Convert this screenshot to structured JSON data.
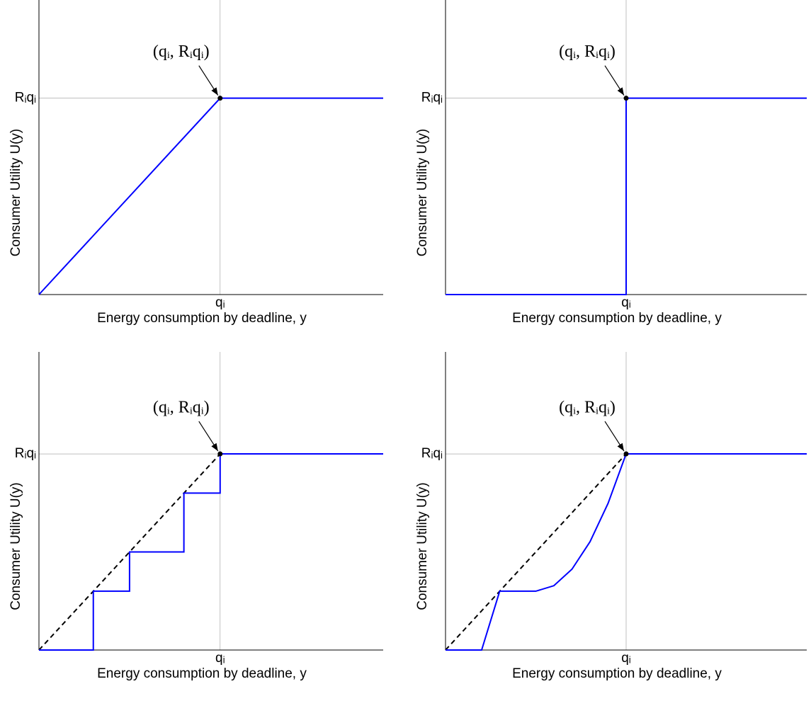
{
  "chart_data": [
    {
      "type": "line",
      "xlabel": "Energy consumption by deadline, y",
      "ylabel": "Consumer Utility U(y)",
      "xlim": [
        0,
        1.9
      ],
      "ylim": [
        0,
        1.5
      ],
      "xticks": [
        {
          "value": 1,
          "label": "qᵢ"
        }
      ],
      "yticks": [
        {
          "value": 1,
          "label": "Rᵢqᵢ"
        }
      ],
      "grid": true,
      "series": [
        {
          "color": "#0000ff",
          "dashed": false,
          "x": [
            0,
            1,
            1.9
          ],
          "values": [
            0,
            1,
            1
          ]
        }
      ],
      "annotation": {
        "text": "(qᵢ, Rᵢqᵢ)",
        "x": 1,
        "y": 1
      }
    },
    {
      "type": "line",
      "xlabel": "Energy consumption by deadline, y",
      "ylabel": "Consumer Utility U(y)",
      "xlim": [
        0,
        2
      ],
      "ylim": [
        0,
        1.5
      ],
      "xticks": [
        {
          "value": 1,
          "label": "qᵢ"
        }
      ],
      "yticks": [
        {
          "value": 1,
          "label": "Rᵢqᵢ"
        }
      ],
      "grid": true,
      "series": [
        {
          "color": "#0000ff",
          "dashed": false,
          "x": [
            0,
            1,
            1,
            2
          ],
          "values": [
            0,
            0,
            1,
            1
          ]
        }
      ],
      "annotation": {
        "text": "(qᵢ, Rᵢqᵢ)",
        "x": 1,
        "y": 1
      }
    },
    {
      "type": "line",
      "xlabel": "Energy consumption by deadline, y",
      "ylabel": "Consumer Utility U(y)",
      "xlim": [
        0,
        1.9
      ],
      "ylim": [
        0,
        1.52
      ],
      "xticks": [
        {
          "value": 1,
          "label": "qᵢ"
        }
      ],
      "yticks": [
        {
          "value": 1,
          "label": "Rᵢqᵢ"
        }
      ],
      "grid": true,
      "series": [
        {
          "color": "#000000",
          "dashed": true,
          "x": [
            0,
            1
          ],
          "values": [
            0,
            1
          ]
        },
        {
          "color": "#0000ff",
          "dashed": false,
          "x": [
            0,
            0.3,
            0.3,
            0.5,
            0.5,
            0.8,
            0.8,
            1,
            1,
            1.9
          ],
          "values": [
            0,
            0,
            0.3,
            0.3,
            0.5,
            0.5,
            0.8,
            0.8,
            1,
            1
          ]
        }
      ],
      "annotation": {
        "text": "(qᵢ, Rᵢqᵢ)",
        "x": 1,
        "y": 1
      }
    },
    {
      "type": "line",
      "xlabel": "Energy consumption by deadline, y",
      "ylabel": "Consumer Utility U(y)",
      "xlim": [
        0,
        2
      ],
      "ylim": [
        0,
        1.52
      ],
      "xticks": [
        {
          "value": 1,
          "label": "qᵢ"
        }
      ],
      "yticks": [
        {
          "value": 1,
          "label": "Rᵢqᵢ"
        }
      ],
      "grid": true,
      "series": [
        {
          "color": "#000000",
          "dashed": true,
          "x": [
            0,
            1
          ],
          "values": [
            0,
            1
          ]
        },
        {
          "color": "#0000ff",
          "dashed": false,
          "x": [
            0,
            0.2,
            0.3,
            0.5,
            0.6,
            0.7,
            0.8,
            0.9,
            1,
            2
          ],
          "values": [
            0,
            0,
            0.3,
            0.3,
            0.328,
            0.412,
            0.552,
            0.748,
            1,
            1
          ]
        }
      ],
      "annotation": {
        "text": "(qᵢ, Rᵢqᵢ)",
        "x": 1,
        "y": 1
      }
    }
  ]
}
